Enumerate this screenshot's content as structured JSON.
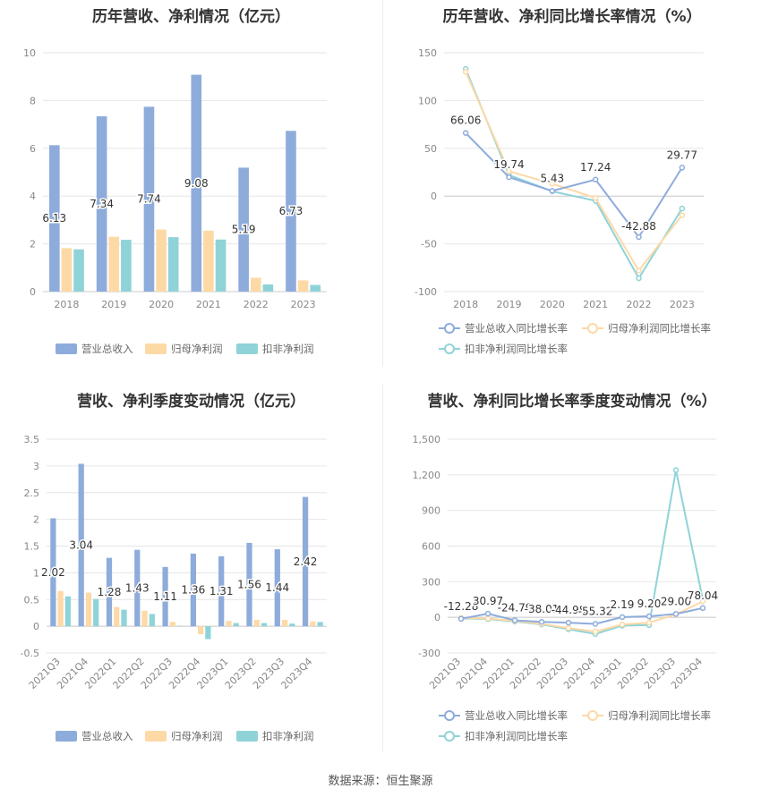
{
  "source_label": "数据来源：恒生聚源",
  "chart_data": [
    {
      "type": "bar",
      "title": "历年营收、净利情况（亿元）",
      "categories": [
        "2018",
        "2019",
        "2020",
        "2021",
        "2022",
        "2023"
      ],
      "ylim": [
        0,
        10
      ],
      "yticks": [
        0,
        2,
        4,
        6,
        8,
        10
      ],
      "grid": true,
      "legend": "bottom",
      "series": [
        {
          "name": "营业总收入",
          "color": "#8eacdb",
          "values": [
            6.13,
            7.34,
            7.74,
            9.08,
            5.19,
            6.73
          ],
          "labels": [
            "6.13",
            "7.34",
            "7.74",
            "9.08",
            "5.19",
            "6.73"
          ]
        },
        {
          "name": "归母净利润",
          "color": "#fdd9a6",
          "values": [
            1.82,
            2.3,
            2.6,
            2.55,
            0.58,
            0.47
          ]
        },
        {
          "name": "扣非净利润",
          "color": "#8fd3d8",
          "values": [
            1.77,
            2.17,
            2.28,
            2.18,
            0.3,
            0.28
          ]
        }
      ]
    },
    {
      "type": "line",
      "title": "历年营收、净利同比增长率情况（%）",
      "categories": [
        "2018",
        "2019",
        "2020",
        "2021",
        "2022",
        "2023"
      ],
      "ylim": [
        -100,
        150
      ],
      "yticks": [
        -100,
        -50,
        0,
        50,
        100,
        150
      ],
      "grid": true,
      "legend": "bottom",
      "series": [
        {
          "name": "营业总收入同比增长率",
          "color": "#8eacdb",
          "values": [
            66.06,
            19.74,
            5.43,
            17.24,
            -42.88,
            29.77
          ],
          "labels": [
            "66.06",
            "19.74",
            "5.43",
            "17.24",
            "-42.88",
            "29.77"
          ]
        },
        {
          "name": "归母净利润同比增长率",
          "color": "#fdd9a6",
          "values": [
            130,
            26,
            13,
            -2,
            -78,
            -20
          ]
        },
        {
          "name": "扣非净利润同比增长率",
          "color": "#8fd3d8",
          "values": [
            133,
            22,
            5,
            -5,
            -86,
            -13
          ]
        }
      ]
    },
    {
      "type": "bar",
      "title": "营收、净利季度变动情况（亿元）",
      "categories": [
        "2021Q3",
        "2021Q4",
        "2022Q1",
        "2022Q2",
        "2022Q3",
        "2022Q4",
        "2023Q1",
        "2023Q2",
        "2023Q3",
        "2023Q4"
      ],
      "ylim": [
        -0.5,
        3.5
      ],
      "yticks": [
        -0.5,
        0,
        0.5,
        1,
        1.5,
        2,
        2.5,
        3,
        3.5
      ],
      "grid": true,
      "legend": "bottom",
      "series": [
        {
          "name": "营业总收入",
          "color": "#8eacdb",
          "values": [
            2.02,
            3.04,
            1.28,
            1.43,
            1.11,
            1.36,
            1.31,
            1.56,
            1.44,
            2.42
          ],
          "labels": [
            "2.02",
            "3.04",
            "1.28",
            "1.43",
            "1.11",
            "1.36",
            "1.31",
            "1.56",
            "1.44",
            "2.42"
          ]
        },
        {
          "name": "归母净利润",
          "color": "#fdd9a6",
          "values": [
            0.66,
            0.63,
            0.36,
            0.29,
            0.08,
            -0.15,
            0.1,
            0.12,
            0.12,
            0.09
          ]
        },
        {
          "name": "扣非净利润",
          "color": "#8fd3d8",
          "values": [
            0.56,
            0.51,
            0.31,
            0.23,
            0.01,
            -0.24,
            0.06,
            0.06,
            0.05,
            0.08
          ]
        }
      ]
    },
    {
      "type": "line",
      "title": "营收、净利同比增长率季度变动情况（%）",
      "categories": [
        "2021Q3",
        "2021Q4",
        "2022Q1",
        "2022Q2",
        "2022Q3",
        "2022Q4",
        "2023Q1",
        "2023Q2",
        "2023Q3",
        "2023Q4"
      ],
      "ylim": [
        -300,
        1500
      ],
      "yticks": [
        -300,
        0,
        300,
        600,
        900,
        1200,
        1500
      ],
      "ytick_labels": [
        "-300",
        "0",
        "300",
        "600",
        "900",
        "1,200",
        "1,500"
      ],
      "grid": true,
      "legend": "bottom",
      "series": [
        {
          "name": "营业总收入同比增长率",
          "color": "#8eacdb",
          "values": [
            -12.28,
            30.97,
            -24.79,
            -38.01,
            -44.98,
            -55.32,
            2.19,
            9.2,
            29.0,
            78.04
          ],
          "labels": [
            "-12.28",
            "30.97",
            "-24.79",
            "-38.01",
            "-44.98",
            "-55.32",
            "2.19",
            "9.20",
            "29.00",
            "78.04"
          ]
        },
        {
          "name": "归母净利润同比增长率",
          "color": "#fdd9a6",
          "values": [
            -5,
            -10,
            -30,
            -55,
            -90,
            -120,
            -60,
            -45,
            25,
            135
          ]
        },
        {
          "name": "扣非净利润同比增长率",
          "color": "#8fd3d8",
          "values": [
            -8,
            -15,
            -35,
            -60,
            -100,
            -140,
            -70,
            -65,
            1240,
            150
          ]
        }
      ]
    }
  ]
}
